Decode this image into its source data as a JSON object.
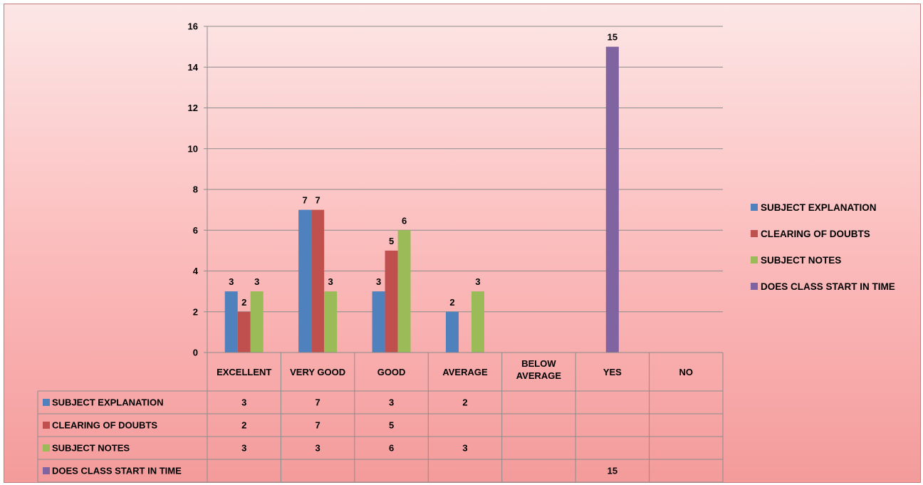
{
  "chart_data": {
    "type": "bar",
    "categories": [
      "EXCELLENT",
      "VERY GOOD",
      "GOOD",
      "AVERAGE",
      "BELOW AVERAGE",
      "YES",
      "NO"
    ],
    "series": [
      {
        "name": "SUBJECT EXPLANATION",
        "color": "#4f81bd",
        "values": [
          3,
          7,
          3,
          2,
          null,
          null,
          null
        ]
      },
      {
        "name": "CLEARING OF DOUBTS",
        "color": "#c0504d",
        "values": [
          2,
          7,
          5,
          null,
          null,
          null,
          null
        ]
      },
      {
        "name": "SUBJECT NOTES",
        "color": "#9bbb59",
        "values": [
          3,
          3,
          6,
          3,
          null,
          null,
          null
        ]
      },
      {
        "name": "DOES CLASS START IN TIME",
        "color": "#8064a2",
        "values": [
          null,
          null,
          null,
          null,
          null,
          15,
          null
        ]
      }
    ],
    "yticks": [
      0,
      2,
      4,
      6,
      8,
      10,
      12,
      14,
      16
    ],
    "ylim": [
      0,
      16
    ],
    "grid": true,
    "legend_position": "right",
    "data_table": true
  }
}
